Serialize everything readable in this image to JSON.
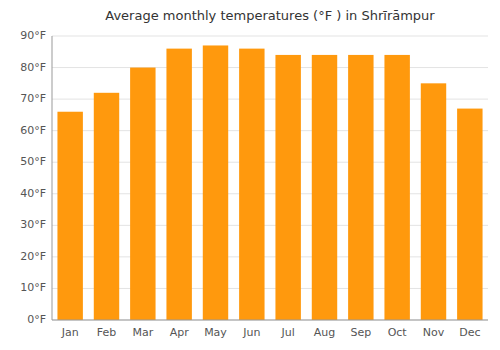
{
  "chart_data": {
    "type": "bar",
    "title": "Average monthly temperatures (°F ) in Shrīrāmpur",
    "categories": [
      "Jan",
      "Feb",
      "Mar",
      "Apr",
      "May",
      "Jun",
      "Jul",
      "Aug",
      "Sep",
      "Oct",
      "Nov",
      "Dec"
    ],
    "values": [
      66,
      72,
      80,
      86,
      87,
      86,
      84,
      84,
      84,
      84,
      75,
      67
    ],
    "color": "#ff990d",
    "ylim": [
      0,
      90
    ],
    "yticks": [
      {
        "value": 0,
        "label": "0°F"
      },
      {
        "value": 10,
        "label": "10°F"
      },
      {
        "value": 20,
        "label": "20°F"
      },
      {
        "value": 30,
        "label": "30°F"
      },
      {
        "value": 40,
        "label": "40°F"
      },
      {
        "value": 50,
        "label": "50°F"
      },
      {
        "value": 60,
        "label": "60°F"
      },
      {
        "value": 70,
        "label": "70°F"
      },
      {
        "value": 80,
        "label": "80°F"
      },
      {
        "value": 90,
        "label": "90°F"
      }
    ],
    "grid": true
  }
}
